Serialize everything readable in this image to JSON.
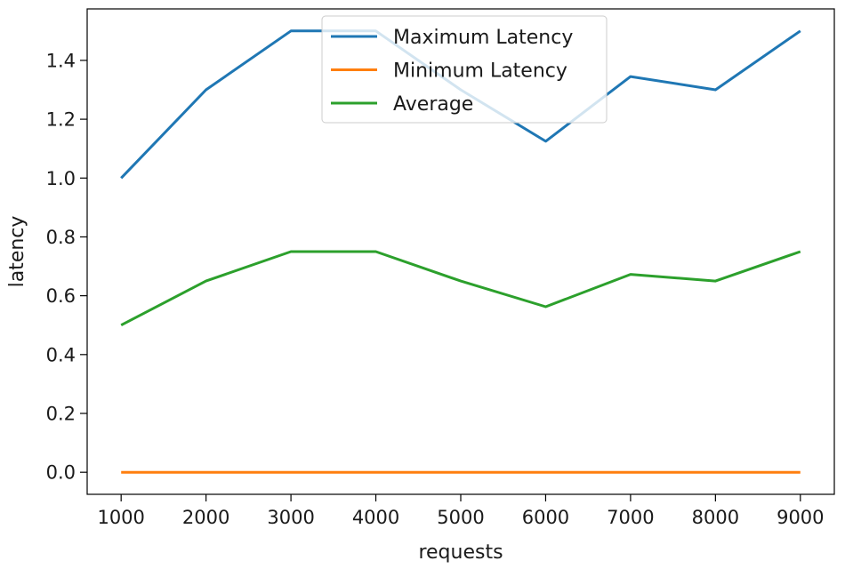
{
  "chart_data": {
    "type": "line",
    "title": "",
    "xlabel": "requests",
    "ylabel": "latency",
    "x": [
      1000,
      2000,
      3000,
      4000,
      5000,
      6000,
      7000,
      8000,
      9000
    ],
    "x_ticks": [
      1000,
      2000,
      3000,
      4000,
      5000,
      6000,
      7000,
      8000,
      9000
    ],
    "x_tick_labels": [
      "1000",
      "2000",
      "3000",
      "4000",
      "5000",
      "6000",
      "7000",
      "8000",
      "9000"
    ],
    "y_ticks": [
      0.0,
      0.2,
      0.4,
      0.6,
      0.8,
      1.0,
      1.2,
      1.4
    ],
    "y_tick_labels": [
      "0.0",
      "0.2",
      "0.4",
      "0.6",
      "0.8",
      "1.0",
      "1.2",
      "1.4"
    ],
    "xlim": [
      600,
      9400
    ],
    "ylim": [
      -0.075,
      1.575
    ],
    "grid": false,
    "legend_position": "upper center",
    "series": [
      {
        "name": "Maximum Latency",
        "color": "#1f77b4",
        "values": [
          1.0,
          1.3,
          1.5,
          1.5,
          1.3,
          1.125,
          1.345,
          1.3,
          1.5
        ]
      },
      {
        "name": "Minimum Latency",
        "color": "#ff7f0e",
        "values": [
          0.0,
          0.0,
          0.0,
          0.0,
          0.0,
          0.0,
          0.0,
          0.0,
          0.0
        ]
      },
      {
        "name": "Average",
        "color": "#2ca02c",
        "values": [
          0.5,
          0.65,
          0.75,
          0.75,
          0.65,
          0.5625,
          0.6725,
          0.65,
          0.75
        ]
      }
    ]
  }
}
